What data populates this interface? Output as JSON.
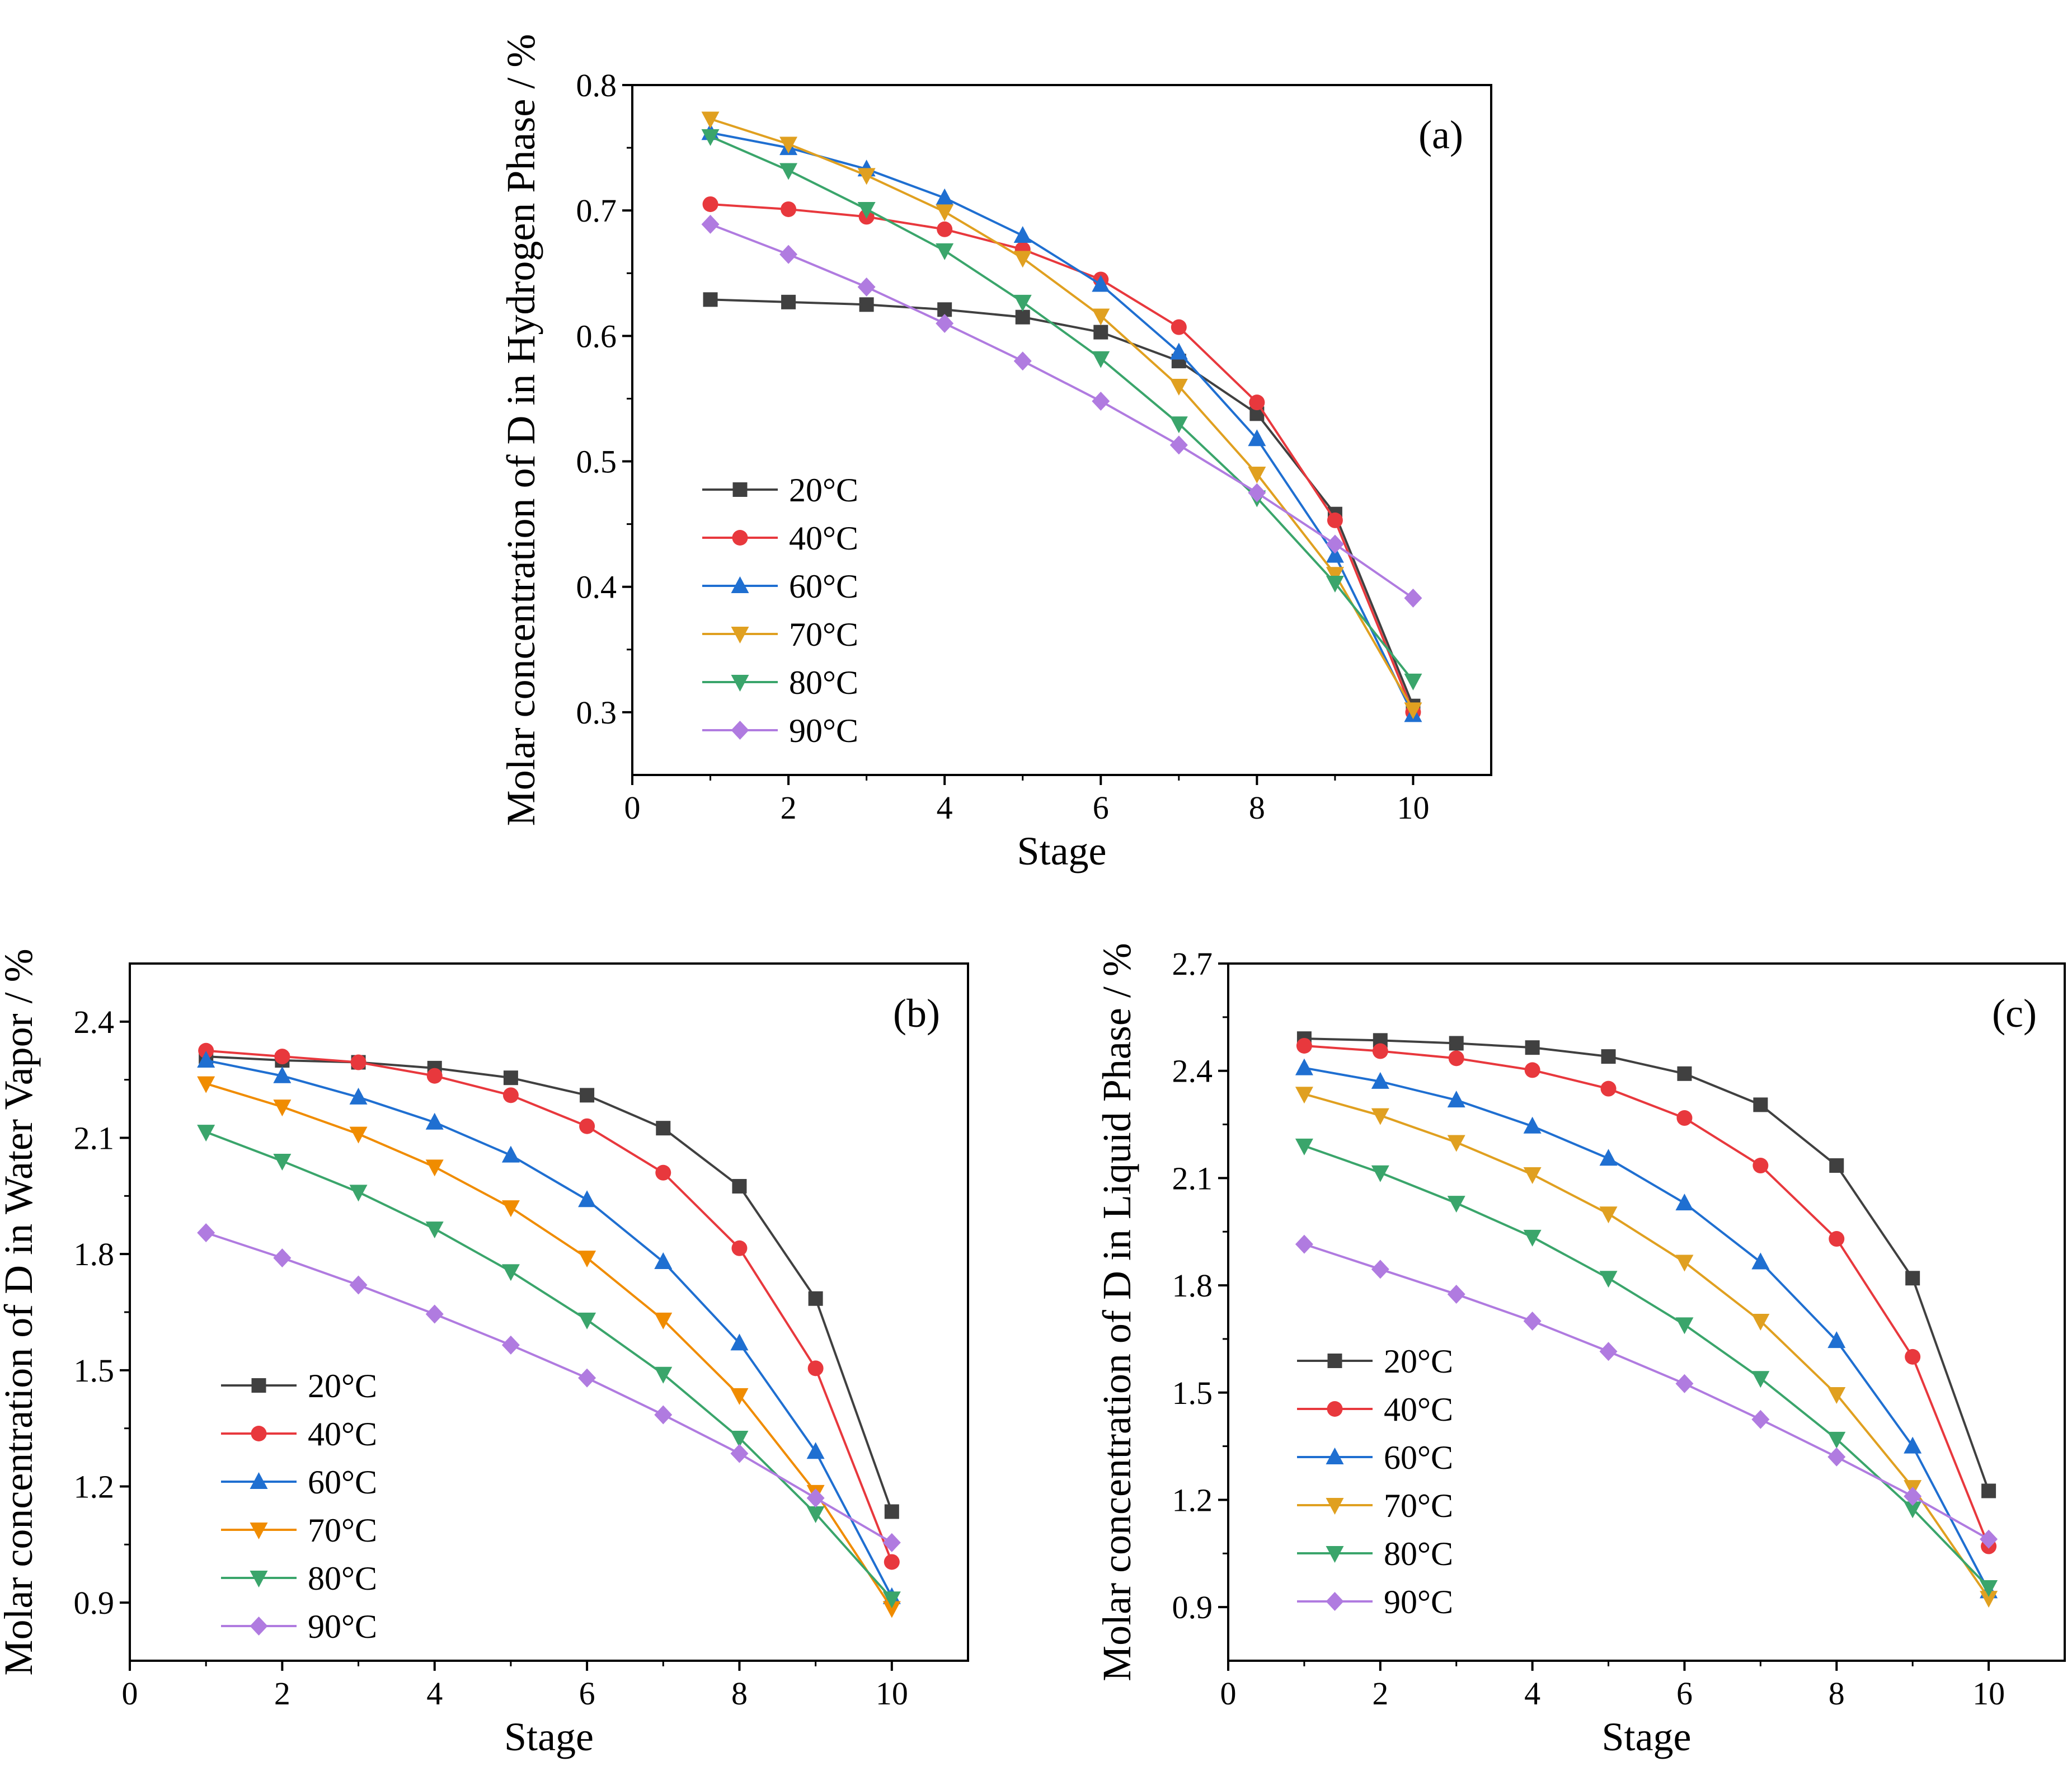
{
  "chart_data": [
    {
      "type": "line",
      "panel_label": "(a)",
      "title": "",
      "xlabel": "Stage",
      "ylabel": "Molar concentration of D in Hydrogen Phase / %",
      "xlim": [
        0,
        11
      ],
      "ylim": [
        0.25,
        0.8
      ],
      "xticks": [
        0,
        2,
        4,
        6,
        8,
        10
      ],
      "xtick_labels": [
        "0",
        "2",
        "4",
        "6",
        "8",
        "10"
      ],
      "yticks": [
        0.3,
        0.4,
        0.5,
        0.6,
        0.7,
        0.8
      ],
      "ytick_labels": [
        "0.3",
        "0.4",
        "0.5",
        "0.6",
        "0.7",
        "0.8"
      ],
      "legend_position": "bottom-left",
      "x": [
        1,
        2,
        3,
        4,
        5,
        6,
        7,
        8,
        9,
        10
      ],
      "series": [
        {
          "name": "20°C",
          "color": "#404040",
          "marker": "square",
          "values": [
            0.629,
            0.627,
            0.625,
            0.621,
            0.615,
            0.603,
            0.58,
            0.538,
            0.458,
            0.305
          ]
        },
        {
          "name": "40°C",
          "color": "#e8383d",
          "marker": "circle",
          "values": [
            0.705,
            0.701,
            0.695,
            0.685,
            0.669,
            0.645,
            0.607,
            0.547,
            0.453,
            0.3
          ]
        },
        {
          "name": "60°C",
          "color": "#1f6fd1",
          "marker": "triangle-up",
          "values": [
            0.762,
            0.75,
            0.733,
            0.71,
            0.68,
            0.641,
            0.587,
            0.518,
            0.425,
            0.298
          ]
        },
        {
          "name": "70°C",
          "color": "#e0a020",
          "marker": "triangle-down",
          "values": [
            0.773,
            0.753,
            0.728,
            0.699,
            0.662,
            0.616,
            0.56,
            0.49,
            0.41,
            0.302
          ]
        },
        {
          "name": "80°C",
          "color": "#3aa56b",
          "marker": "triangle-down",
          "values": [
            0.759,
            0.732,
            0.701,
            0.668,
            0.627,
            0.582,
            0.53,
            0.471,
            0.403,
            0.325
          ]
        },
        {
          "name": "90°C",
          "color": "#b07be0",
          "marker": "diamond",
          "values": [
            0.689,
            0.665,
            0.639,
            0.61,
            0.58,
            0.548,
            0.513,
            0.475,
            0.434,
            0.391
          ]
        }
      ]
    },
    {
      "type": "line",
      "panel_label": "(b)",
      "title": "",
      "xlabel": "Stage",
      "ylabel": "Molar concentration of D in Water Vapor / %",
      "xlim": [
        0,
        11
      ],
      "ylim": [
        0.75,
        2.55
      ],
      "xticks": [
        0,
        2,
        4,
        6,
        8,
        10
      ],
      "xtick_labels": [
        "0",
        "2",
        "4",
        "6",
        "8",
        "10"
      ],
      "yticks": [
        0.9,
        1.2,
        1.5,
        1.8,
        2.1,
        2.4
      ],
      "ytick_labels": [
        "0.9",
        "1.2",
        "1.5",
        "1.8",
        "2.1",
        "2.4"
      ],
      "legend_position": "bottom-left",
      "x": [
        1,
        2,
        3,
        4,
        5,
        6,
        7,
        8,
        9,
        10
      ],
      "series": [
        {
          "name": "20°C",
          "color": "#404040",
          "marker": "square",
          "values": [
            2.31,
            2.3,
            2.295,
            2.28,
            2.255,
            2.21,
            2.125,
            1.975,
            1.685,
            1.135
          ]
        },
        {
          "name": "40°C",
          "color": "#e8383d",
          "marker": "circle",
          "values": [
            2.325,
            2.31,
            2.295,
            2.26,
            2.21,
            2.13,
            2.01,
            1.815,
            1.505,
            1.005
          ]
        },
        {
          "name": "60°C",
          "color": "#1f6fd1",
          "marker": "triangle-up",
          "values": [
            2.3,
            2.26,
            2.205,
            2.14,
            2.055,
            1.94,
            1.78,
            1.57,
            1.29,
            0.915
          ]
        },
        {
          "name": "70°C",
          "color": "#f08c00",
          "marker": "triangle-down",
          "values": [
            2.24,
            2.18,
            2.11,
            2.025,
            1.92,
            1.79,
            1.63,
            1.435,
            1.185,
            0.885
          ]
        },
        {
          "name": "80°C",
          "color": "#3aa56b",
          "marker": "triangle-down",
          "values": [
            2.115,
            2.04,
            1.96,
            1.865,
            1.755,
            1.63,
            1.49,
            1.325,
            1.13,
            0.91
          ]
        },
        {
          "name": "90°C",
          "color": "#b07be0",
          "marker": "diamond",
          "values": [
            1.855,
            1.79,
            1.72,
            1.645,
            1.565,
            1.48,
            1.385,
            1.285,
            1.17,
            1.055
          ]
        }
      ]
    },
    {
      "type": "line",
      "panel_label": "(c)",
      "title": "",
      "xlabel": "Stage",
      "ylabel": "Molar concentration of D in Liquid Phase / %",
      "xlim": [
        0,
        11
      ],
      "ylim": [
        0.75,
        2.7
      ],
      "xticks": [
        0,
        2,
        4,
        6,
        8,
        10
      ],
      "xtick_labels": [
        "0",
        "2",
        "4",
        "6",
        "8",
        "10"
      ],
      "yticks": [
        0.9,
        1.2,
        1.5,
        1.8,
        2.1,
        2.4,
        2.7
      ],
      "ytick_labels": [
        "0.9",
        "1.2",
        "1.5",
        "1.8",
        "2.1",
        "2.4",
        "2.7"
      ],
      "legend_position": "bottom-left",
      "x": [
        1,
        2,
        3,
        4,
        5,
        6,
        7,
        8,
        9,
        10
      ],
      "series": [
        {
          "name": "20°C",
          "color": "#404040",
          "marker": "square",
          "values": [
            2.49,
            2.485,
            2.477,
            2.465,
            2.44,
            2.392,
            2.305,
            2.135,
            1.82,
            1.225
          ]
        },
        {
          "name": "40°C",
          "color": "#e8383d",
          "marker": "circle",
          "values": [
            2.47,
            2.455,
            2.435,
            2.402,
            2.35,
            2.268,
            2.135,
            1.93,
            1.6,
            1.07
          ]
        },
        {
          "name": "60°C",
          "color": "#1f6fd1",
          "marker": "triangle-up",
          "values": [
            2.408,
            2.37,
            2.318,
            2.245,
            2.155,
            2.03,
            1.865,
            1.645,
            1.35,
            0.945
          ]
        },
        {
          "name": "70°C",
          "color": "#e0a020",
          "marker": "triangle-down",
          "values": [
            2.335,
            2.275,
            2.2,
            2.11,
            2.0,
            1.865,
            1.7,
            1.495,
            1.235,
            0.925
          ]
        },
        {
          "name": "80°C",
          "color": "#3aa56b",
          "marker": "triangle-down",
          "values": [
            2.19,
            2.115,
            2.03,
            1.935,
            1.82,
            1.69,
            1.54,
            1.37,
            1.175,
            0.955
          ]
        },
        {
          "name": "90°C",
          "color": "#b07be0",
          "marker": "diamond",
          "values": [
            1.915,
            1.845,
            1.775,
            1.7,
            1.615,
            1.525,
            1.425,
            1.32,
            1.21,
            1.09
          ]
        }
      ]
    }
  ]
}
